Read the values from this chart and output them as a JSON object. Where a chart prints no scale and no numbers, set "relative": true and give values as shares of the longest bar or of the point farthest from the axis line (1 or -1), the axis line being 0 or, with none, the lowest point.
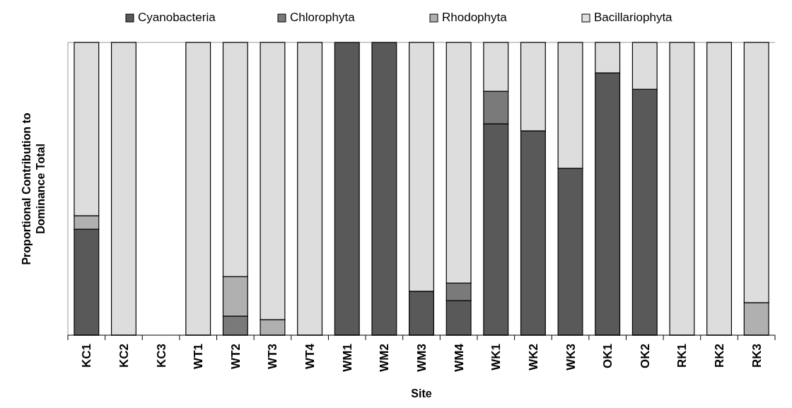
{
  "chart_data": {
    "type": "bar",
    "stacked": true,
    "relative": true,
    "xlabel": "Site",
    "ylabel": "Proportional Contribution to Dominance Total",
    "legend": "top",
    "categories": [
      "KC1",
      "KC2",
      "KC3",
      "WT1",
      "WT2",
      "WT3",
      "WT4",
      "WM1",
      "WM2",
      "WM3",
      "WM4",
      "WK1",
      "WK2",
      "WK3",
      "OK1",
      "OK2",
      "RK1",
      "RK2",
      "RK3"
    ],
    "series": [
      {
        "name": "Cyanobacteria",
        "color": "#595959",
        "values": [
          0.362,
          0,
          0,
          0,
          0,
          0,
          0,
          1,
          1,
          0.15,
          0.118,
          0.722,
          0.698,
          0.57,
          0.896,
          0.84,
          0,
          0,
          0
        ]
      },
      {
        "name": "Chlorophyta",
        "color": "#7a7a7a",
        "values": [
          0,
          0,
          0,
          0,
          0.065,
          0,
          0,
          0,
          0,
          0,
          0.06,
          0.111,
          0,
          0,
          0,
          0,
          0,
          0,
          0
        ]
      },
      {
        "name": "Rhodophyta",
        "color": "#b0b0b0",
        "values": [
          0.046,
          0,
          0,
          0,
          0.135,
          0.053,
          0,
          0,
          0,
          0,
          0,
          0,
          0,
          0,
          0,
          0,
          0,
          0,
          0.111
        ]
      },
      {
        "name": "Bacillariophyta",
        "color": "#dddddd",
        "values": [
          0.592,
          1,
          0,
          1,
          0.8,
          0.947,
          1,
          0,
          0,
          0.85,
          0.822,
          0.167,
          0.302,
          0.43,
          0.104,
          0.16,
          1,
          1,
          0.889
        ]
      }
    ]
  }
}
